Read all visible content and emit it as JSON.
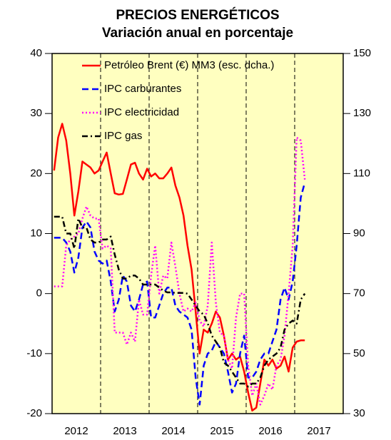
{
  "chart_data": {
    "type": "line",
    "title": "PRECIOS ENERGÉTICOS",
    "subtitle": "Variación anual en porcentaje",
    "background": "#ffffc0",
    "xlim": [
      2012,
      2018
    ],
    "xticks": [
      2012,
      2013,
      2014,
      2015,
      2016,
      2017
    ],
    "ylim": [
      -20,
      40
    ],
    "yticks": [
      -20,
      -10,
      0,
      10,
      20,
      30,
      40
    ],
    "y2lim": [
      30,
      150
    ],
    "y2ticks": [
      30,
      50,
      70,
      90,
      110,
      130,
      150
    ],
    "x": [
      "2012-01",
      "2012-02",
      "2012-03",
      "2012-04",
      "2012-05",
      "2012-06",
      "2012-07",
      "2012-08",
      "2012-09",
      "2012-10",
      "2012-11",
      "2012-12",
      "2013-01",
      "2013-02",
      "2013-03",
      "2013-04",
      "2013-05",
      "2013-06",
      "2013-07",
      "2013-08",
      "2013-09",
      "2013-10",
      "2013-11",
      "2013-12",
      "2014-01",
      "2014-02",
      "2014-03",
      "2014-04",
      "2014-05",
      "2014-06",
      "2014-07",
      "2014-08",
      "2014-09",
      "2014-10",
      "2014-11",
      "2014-12",
      "2015-01",
      "2015-02",
      "2015-03",
      "2015-04",
      "2015-05",
      "2015-06",
      "2015-07",
      "2015-08",
      "2015-09",
      "2015-10",
      "2015-11",
      "2015-12",
      "2016-01",
      "2016-02",
      "2016-03",
      "2016-04",
      "2016-05",
      "2016-06",
      "2016-07",
      "2016-08",
      "2016-09",
      "2016-10",
      "2016-11",
      "2016-12",
      "2017-01",
      "2017-02",
      "2017-03"
    ],
    "series": [
      {
        "name": "Petróleo Brent (€) MM3 (esc. dcha.)",
        "color": "#ff0000",
        "dash": "solid",
        "axis": "y2",
        "values": [
          111,
          122,
          126.6,
          121,
          110,
          96,
          104,
          114,
          113,
          112,
          110,
          111,
          114,
          117,
          110,
          103.4,
          103,
          103.2,
          108,
          113,
          113.6,
          110,
          108,
          111.6,
          109,
          110,
          108.4,
          108.4,
          110,
          112,
          106,
          102,
          96,
          86,
          78,
          64,
          50,
          58,
          57,
          60,
          64,
          62,
          56,
          48,
          50,
          48,
          49,
          44,
          37,
          31,
          32,
          40,
          48,
          46,
          48,
          45,
          46,
          49,
          44,
          52,
          54,
          54.4,
          54.4
        ]
      },
      {
        "name": "IPC carburantes",
        "color": "#0000ff",
        "dash": "dashed",
        "values": [
          9.3,
          9.3,
          9.3,
          8.5,
          7,
          3.5,
          6,
          11,
          12,
          11,
          7,
          5.5,
          5,
          5.5,
          2,
          -3,
          -1,
          3,
          2,
          -2,
          -3,
          -1,
          1.5,
          2,
          -4,
          -4,
          -2,
          0,
          1,
          1,
          -2,
          -3,
          -3.5,
          -4,
          -6,
          -14,
          -18.5,
          -12,
          -10,
          -9.5,
          -8,
          -9,
          -10,
          -13,
          -16.5,
          -15,
          -10,
          -7,
          -14,
          -14,
          -13,
          -11,
          -10,
          -10,
          -8,
          -6,
          -1,
          1,
          -1,
          2,
          8,
          16,
          18.5
        ]
      },
      {
        "name": "IPC electricidad",
        "color": "#ff00ff",
        "dash": "dotted",
        "values": [
          1.2,
          1.2,
          1.2,
          8,
          9,
          9.5,
          10,
          12.5,
          14.5,
          13,
          12.5,
          12.5,
          7.5,
          8,
          7.5,
          -6.5,
          -6.5,
          -6.5,
          -8.5,
          -6.5,
          -8,
          -1,
          -3.5,
          -3.5,
          3,
          8,
          0,
          3,
          2.5,
          8.5,
          4.5,
          0,
          -3,
          -2.5,
          -3,
          -1.5,
          -4.5,
          -5.5,
          -2,
          8.5,
          -1.5,
          -6.5,
          -7,
          -11,
          -12.5,
          -4,
          0,
          0,
          -12,
          -17,
          -15,
          -18.5,
          -17,
          -15,
          -16,
          -12,
          -11,
          -7,
          0,
          8,
          26,
          25.5,
          19
        ]
      },
      {
        "name": "IPC gas",
        "color": "#000000",
        "dash": "dashdot",
        "values": [
          12.8,
          12.8,
          12.8,
          10,
          10,
          7.5,
          12.5,
          11,
          11,
          9,
          8.5,
          8.5,
          9,
          9,
          9.5,
          6.5,
          4,
          2.5,
          2.5,
          3,
          3,
          2.5,
          1.5,
          1.5,
          1.5,
          1.5,
          1,
          0.5,
          0.2,
          0.2,
          0.1,
          0.1,
          0.1,
          0,
          -1,
          -2,
          -3,
          -3.5,
          -5,
          -7,
          -8,
          -9,
          -11.5,
          -12,
          -13,
          -14,
          -15,
          -15,
          -15.5,
          -15,
          -15,
          -14,
          -12,
          -11,
          -10.5,
          -10,
          -9,
          -6,
          -5,
          -4.5,
          -5,
          -1,
          0
        ]
      }
    ]
  }
}
